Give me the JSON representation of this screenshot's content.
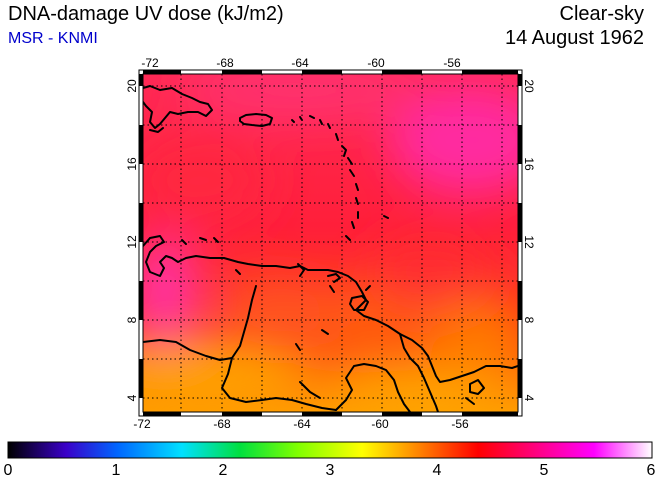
{
  "header": {
    "title": "DNA-damage UV dose (kJ/m2)",
    "subtitle": "MSR - KNMI",
    "product": "Clear-sky",
    "date": "14 August 1962"
  },
  "map": {
    "lon_ticks": [
      "-72",
      "-68",
      "-64",
      "-60",
      "-56"
    ],
    "lat_ticks": [
      "20",
      "16",
      "12",
      "8",
      "4"
    ]
  },
  "colorbar": {
    "ticks": [
      "0",
      "1",
      "2",
      "3",
      "4",
      "5",
      "6"
    ],
    "colors": [
      "#000000",
      "#3a00c8",
      "#0066ff",
      "#00e0ff",
      "#00e040",
      "#80ff00",
      "#ffff00",
      "#ff8000",
      "#ff0000",
      "#ff0080",
      "#ff00ff",
      "#ffffff"
    ]
  }
}
